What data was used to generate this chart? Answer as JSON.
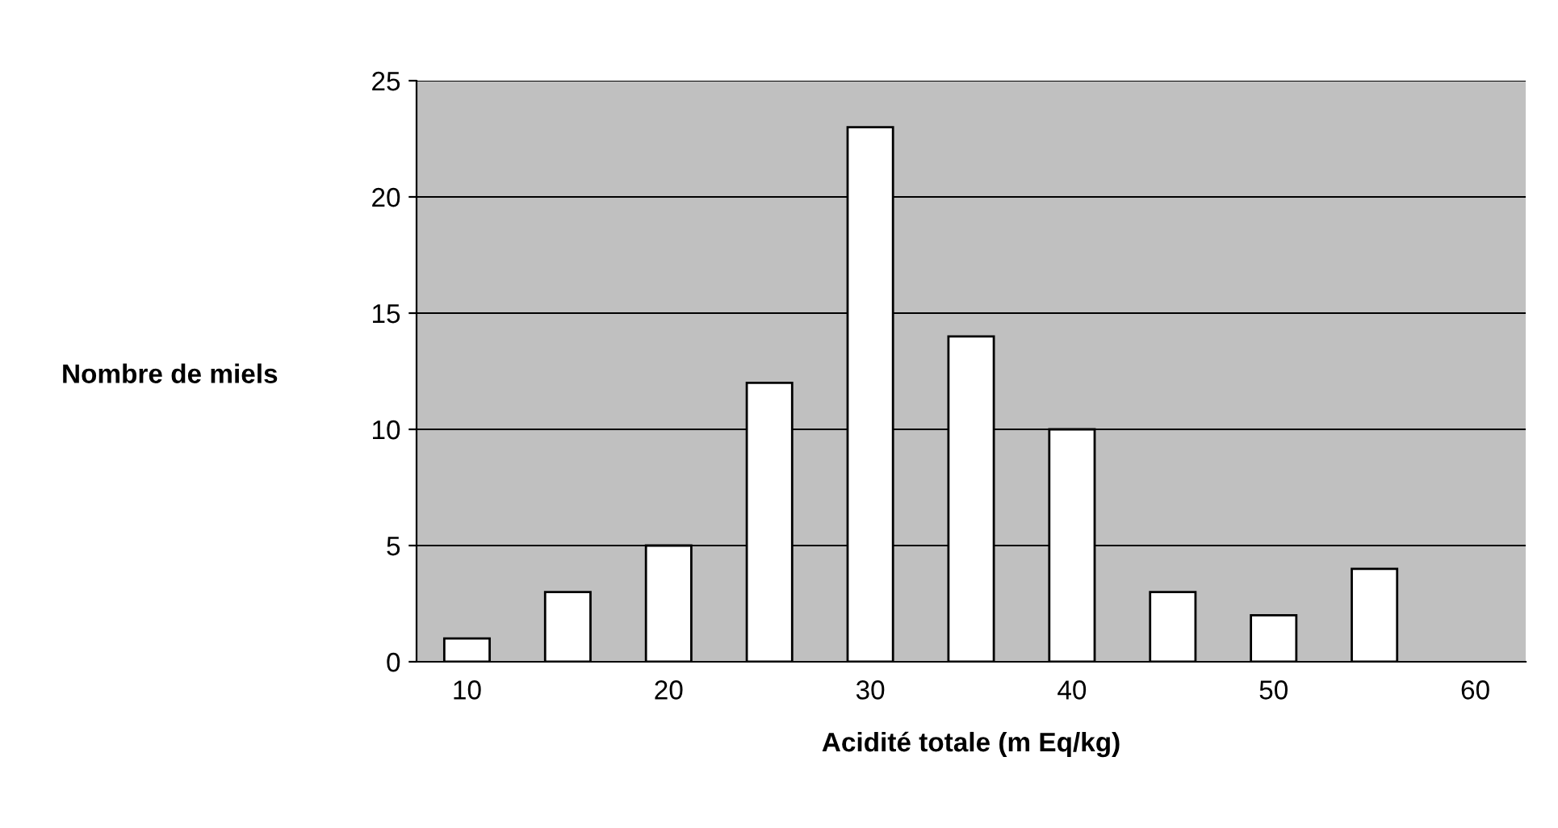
{
  "chart_data": {
    "type": "bar",
    "xlabel": "Acidité totale (m Eq/kg)",
    "ylabel": "Nombre de miels",
    "categories": [
      "10",
      null,
      "20",
      null,
      "30",
      null,
      "40",
      null,
      "50",
      null,
      "60"
    ],
    "values": [
      1,
      3,
      5,
      12,
      23,
      14,
      10,
      3,
      2,
      4,
      null
    ],
    "color": "#ffffff",
    "ylim": [
      0,
      25
    ],
    "yticks": [
      0,
      5,
      10,
      15,
      20,
      25
    ],
    "grid": "y",
    "legend": false
  }
}
